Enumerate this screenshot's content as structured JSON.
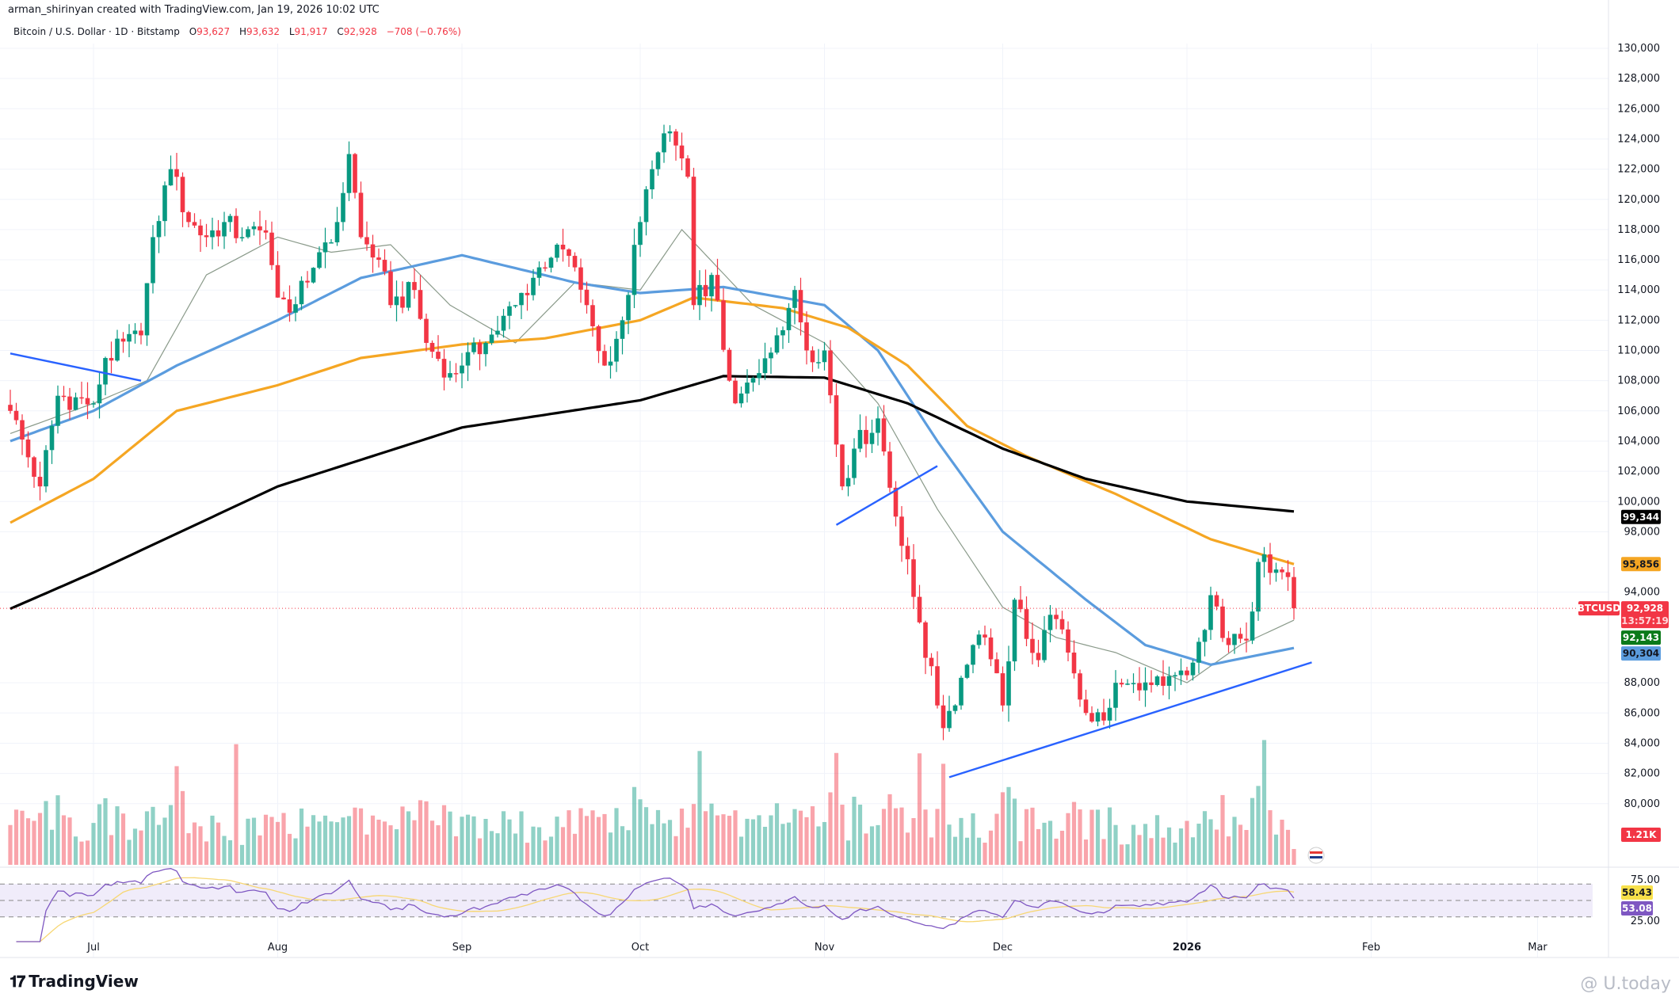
{
  "header": {
    "credit": "arman_shirinyan created with TradingView.com, Jan 19, 2026 10:02 UTC",
    "symbol": "Bitcoin / U.S. Dollar · 1D · Bitstamp",
    "open_label": "O",
    "open": "93,627",
    "high_label": "H",
    "high": "93,632",
    "low_label": "L",
    "low": "91,917",
    "close_label": "C",
    "close": "92,928",
    "change": "−708 (−0.76%)"
  },
  "footer": {
    "brand": "TradingView",
    "watermark": "@ U.today"
  },
  "colors": {
    "up": "#089981",
    "down": "#f23645",
    "ma20": "#8a9a8a",
    "ma50": "#5b9cde",
    "ma100": "#f5a623",
    "ma200": "#000000",
    "trendline": "#2962ff"
  },
  "tags": {
    "ma200": "99,344",
    "ma100": "95,856",
    "symbol": "BTCUSD",
    "price": "92,928",
    "countdown": "13:57:19",
    "ma20": "92,143",
    "ma50": "90,304",
    "volume": "1.21K",
    "rsi": "58.43",
    "rsi_ma": "53.08"
  },
  "chart_data": {
    "type": "candlestick",
    "title": "Bitcoin / U.S. Dollar · 1D · Bitstamp",
    "start_date": "2025-06-17",
    "end_date": "2026-01-19",
    "ylim": [
      78000,
      131000
    ],
    "price_ticks": [
      "130,000",
      "128,000",
      "126,000",
      "124,000",
      "122,000",
      "120,000",
      "118,000",
      "116,000",
      "114,000",
      "112,000",
      "110,000",
      "108,000",
      "106,000",
      "104,000",
      "102,000",
      "100,000",
      "98,000",
      "94,000",
      "88,000",
      "86,000",
      "84,000",
      "82,000",
      "80,000"
    ],
    "time_ticks": [
      [
        "Jul",
        "2025-07-01"
      ],
      [
        "Aug",
        "2025-08-01"
      ],
      [
        "Sep",
        "2025-09-01"
      ],
      [
        "Oct",
        "2025-10-01"
      ],
      [
        "Nov",
        "2025-11-01"
      ],
      [
        "Dec",
        "2025-12-01"
      ],
      [
        "2026",
        "2026-01-01"
      ],
      [
        "Feb",
        "2026-02-01"
      ],
      [
        "Mar",
        "2026-03-01"
      ]
    ],
    "close_keypoints": [
      [
        "2025-06-17",
        106000
      ],
      [
        "2025-06-22",
        101000
      ],
      [
        "2025-06-25",
        107000
      ],
      [
        "2025-07-01",
        106500
      ],
      [
        "2025-07-03",
        109500
      ],
      [
        "2025-07-09",
        111000
      ],
      [
        "2025-07-11",
        117500
      ],
      [
        "2025-07-14",
        122000
      ],
      [
        "2025-07-17",
        118500
      ],
      [
        "2025-07-20",
        117500
      ],
      [
        "2025-07-23",
        118500
      ],
      [
        "2025-07-26",
        117500
      ],
      [
        "2025-07-30",
        117800
      ],
      [
        "2025-08-01",
        113500
      ],
      [
        "2025-08-03",
        112500
      ],
      [
        "2025-08-06",
        114500
      ],
      [
        "2025-08-08",
        116500
      ],
      [
        "2025-08-11",
        118500
      ],
      [
        "2025-08-13",
        123000
      ],
      [
        "2025-08-15",
        117500
      ],
      [
        "2025-08-18",
        116000
      ],
      [
        "2025-08-20",
        113000
      ],
      [
        "2025-08-24",
        114000
      ],
      [
        "2025-08-26",
        110500
      ],
      [
        "2025-08-30",
        108500
      ],
      [
        "2025-09-01",
        109000
      ],
      [
        "2025-09-05",
        110500
      ],
      [
        "2025-09-10",
        113000
      ],
      [
        "2025-09-14",
        115500
      ],
      [
        "2025-09-17",
        117000
      ],
      [
        "2025-09-20",
        115500
      ],
      [
        "2025-09-22",
        113000
      ],
      [
        "2025-09-25",
        109000
      ],
      [
        "2025-09-28",
        112000
      ],
      [
        "2025-10-01",
        118500
      ],
      [
        "2025-10-03",
        122000
      ],
      [
        "2025-10-06",
        124500
      ],
      [
        "2025-10-09",
        121500
      ],
      [
        "2025-10-10",
        113000
      ],
      [
        "2025-10-13",
        115000
      ],
      [
        "2025-10-16",
        108000
      ],
      [
        "2025-10-17",
        106500
      ],
      [
        "2025-10-21",
        108500
      ],
      [
        "2025-10-24",
        111000
      ],
      [
        "2025-10-27",
        114000
      ],
      [
        "2025-10-29",
        110000
      ],
      [
        "2025-11-01",
        110000
      ],
      [
        "2025-11-04",
        101000
      ],
      [
        "2025-11-06",
        103500
      ],
      [
        "2025-11-10",
        105500
      ],
      [
        "2025-11-13",
        99000
      ],
      [
        "2025-11-17",
        92000
      ],
      [
        "2025-11-20",
        86500
      ],
      [
        "2025-11-21",
        85000
      ],
      [
        "2025-11-26",
        90500
      ],
      [
        "2025-11-28",
        91000
      ],
      [
        "2025-12-01",
        86500
      ],
      [
        "2025-12-03",
        93500
      ],
      [
        "2025-12-07",
        89500
      ],
      [
        "2025-12-09",
        92500
      ],
      [
        "2025-12-12",
        90000
      ],
      [
        "2025-12-15",
        86000
      ],
      [
        "2025-12-18",
        85500
      ],
      [
        "2025-12-20",
        88000
      ],
      [
        "2025-12-24",
        87500
      ],
      [
        "2025-12-28",
        87800
      ],
      [
        "2026-01-01",
        88500
      ],
      [
        "2026-01-04",
        91500
      ],
      [
        "2026-01-05",
        93800
      ],
      [
        "2026-01-08",
        90500
      ],
      [
        "2026-01-11",
        90800
      ],
      [
        "2026-01-13",
        96000
      ],
      [
        "2026-01-14",
        96500
      ],
      [
        "2026-01-16",
        95500
      ],
      [
        "2026-01-18",
        95000
      ],
      [
        "2026-01-19",
        92928
      ]
    ],
    "series": [
      {
        "name": "MA20",
        "color_key": "ma20",
        "points": [
          [
            "2025-06-17",
            104500
          ],
          [
            "2025-07-01",
            106500
          ],
          [
            "2025-07-10",
            108000
          ],
          [
            "2025-07-20",
            115000
          ],
          [
            "2025-08-01",
            117500
          ],
          [
            "2025-08-10",
            116500
          ],
          [
            "2025-08-20",
            117000
          ],
          [
            "2025-08-30",
            113000
          ],
          [
            "2025-09-10",
            110500
          ],
          [
            "2025-09-20",
            114500
          ],
          [
            "2025-10-01",
            114000
          ],
          [
            "2025-10-08",
            118000
          ],
          [
            "2025-10-20",
            113000
          ],
          [
            "2025-11-01",
            110500
          ],
          [
            "2025-11-10",
            106500
          ],
          [
            "2025-11-20",
            99500
          ],
          [
            "2025-12-01",
            93000
          ],
          [
            "2025-12-10",
            91000
          ],
          [
            "2025-12-20",
            90000
          ],
          [
            "2026-01-01",
            88000
          ],
          [
            "2026-01-10",
            90500
          ],
          [
            "2026-01-19",
            92143
          ]
        ]
      },
      {
        "name": "MA50",
        "color_key": "ma50",
        "points": [
          [
            "2025-06-17",
            104000
          ],
          [
            "2025-07-01",
            106000
          ],
          [
            "2025-07-15",
            109000
          ],
          [
            "2025-08-01",
            112000
          ],
          [
            "2025-08-15",
            114800
          ],
          [
            "2025-09-01",
            116300
          ],
          [
            "2025-09-20",
            114500
          ],
          [
            "2025-10-01",
            113800
          ],
          [
            "2025-10-15",
            114200
          ],
          [
            "2025-11-01",
            113000
          ],
          [
            "2025-11-10",
            110000
          ],
          [
            "2025-11-20",
            104000
          ],
          [
            "2025-12-01",
            98000
          ],
          [
            "2025-12-15",
            93500
          ],
          [
            "2025-12-25",
            90500
          ],
          [
            "2026-01-05",
            89200
          ],
          [
            "2026-01-19",
            90304
          ]
        ]
      },
      {
        "name": "MA100",
        "color_key": "ma100",
        "points": [
          [
            "2025-06-17",
            98600
          ],
          [
            "2025-07-01",
            101500
          ],
          [
            "2025-07-15",
            106000
          ],
          [
            "2025-08-01",
            107700
          ],
          [
            "2025-08-15",
            109500
          ],
          [
            "2025-09-01",
            110400
          ],
          [
            "2025-09-15",
            110800
          ],
          [
            "2025-10-01",
            112000
          ],
          [
            "2025-10-10",
            113500
          ],
          [
            "2025-10-25",
            112800
          ],
          [
            "2025-11-05",
            111500
          ],
          [
            "2025-11-15",
            109000
          ],
          [
            "2025-11-25",
            105000
          ],
          [
            "2025-12-05",
            103000
          ],
          [
            "2025-12-20",
            100500
          ],
          [
            "2026-01-05",
            97500
          ],
          [
            "2026-01-19",
            95856
          ]
        ]
      },
      {
        "name": "MA200",
        "color_key": "ma200",
        "points": [
          [
            "2025-06-17",
            92900
          ],
          [
            "2025-07-01",
            95300
          ],
          [
            "2025-08-01",
            101000
          ],
          [
            "2025-09-01",
            104900
          ],
          [
            "2025-10-01",
            106700
          ],
          [
            "2025-10-15",
            108300
          ],
          [
            "2025-11-01",
            108200
          ],
          [
            "2025-11-15",
            106500
          ],
          [
            "2025-12-01",
            103500
          ],
          [
            "2025-12-15",
            101500
          ],
          [
            "2026-01-01",
            100000
          ],
          [
            "2026-01-19",
            99344
          ]
        ]
      }
    ],
    "trendlines": [
      [
        [
          "2025-06-17",
          109800
        ],
        [
          "2025-07-09",
          108000
        ]
      ],
      [
        [
          "2025-11-03",
          98450
        ],
        [
          "2025-11-20",
          102350
        ]
      ],
      [
        [
          "2025-11-22",
          81750
        ],
        [
          "2026-01-22",
          89350
        ]
      ]
    ],
    "volume": {
      "last": "1.21K",
      "spikes": [
        "2025-07-15",
        "2025-07-25",
        "2025-10-11",
        "2025-11-03",
        "2025-11-17",
        "2025-11-21",
        "2026-01-14"
      ]
    },
    "rsi": {
      "ticks": [
        "75.00",
        "25.00"
      ],
      "levels": [
        70,
        50,
        30
      ],
      "value": 58.43,
      "ma": 53.08
    }
  }
}
